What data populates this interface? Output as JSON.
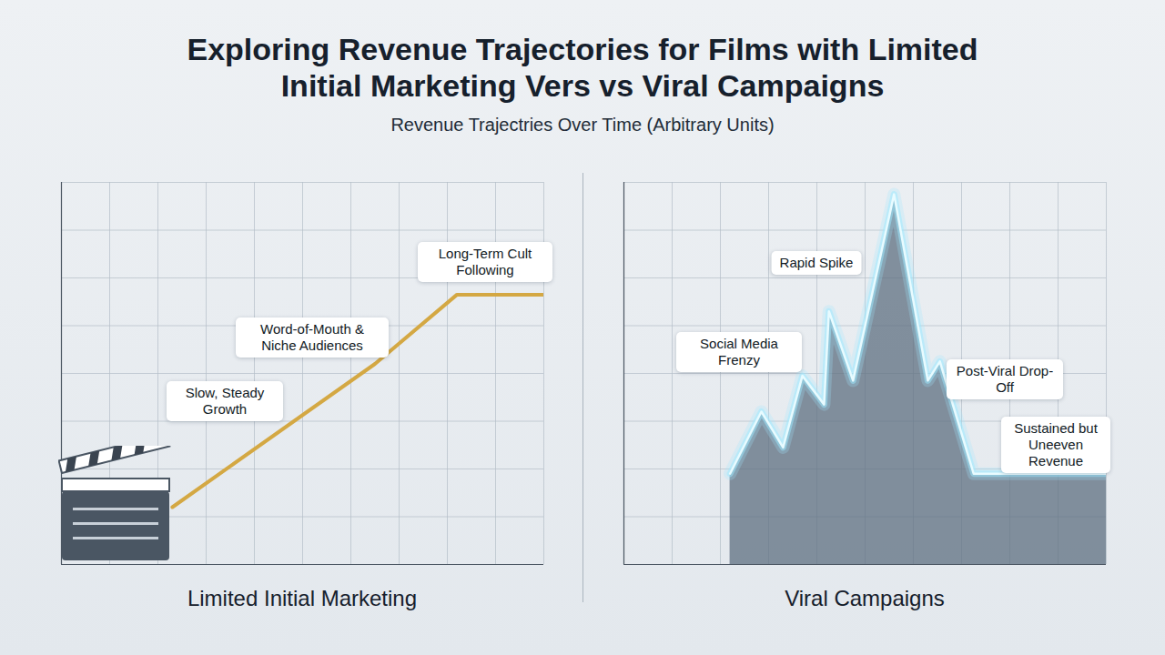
{
  "title": "Exploring Revenue Trajectories for Films with Limited Initial Marketing Vers vs Viral Campaigns",
  "subtitle": "Revenue Trajectries Over Time (Arbitrary Units)",
  "chart_data": [
    {
      "type": "line",
      "title": "Limited Initial Marketing",
      "x": [
        2.3,
        6.5,
        8.2,
        10
      ],
      "values": [
        1.2,
        4.2,
        5.65,
        5.65
      ],
      "color": "#d4a843",
      "xlim": [
        0,
        10
      ],
      "ylim": [
        0,
        8
      ],
      "xticks": [
        0,
        1,
        2,
        3,
        4,
        5,
        6,
        7,
        8,
        9,
        10
      ],
      "yticks": [
        0,
        1,
        2,
        3,
        4,
        5,
        6,
        7,
        8
      ],
      "grid": true,
      "tick_labels": false,
      "annotations": [
        "Slow, Steady Growth",
        "Word-of-Mouth & Niche Audiences",
        "Long-Term Cult Following"
      ]
    },
    {
      "type": "area",
      "title": "Viral Campaigns",
      "x": [
        2.2,
        2.85,
        3.3,
        3.7,
        4.15,
        4.25,
        4.75,
        5.6,
        6.3,
        6.55,
        7.25,
        10
      ],
      "values": [
        1.9,
        3.2,
        2.45,
        3.95,
        3.35,
        5.3,
        3.85,
        7.75,
        3.85,
        4.25,
        1.9,
        1.9
      ],
      "color": "#9ee9ff",
      "xlim": [
        0,
        10
      ],
      "ylim": [
        0,
        8
      ],
      "xticks": [
        0,
        1,
        2,
        3,
        4,
        5,
        6,
        7,
        8,
        9,
        10
      ],
      "yticks": [
        0,
        1,
        2,
        3,
        4,
        5,
        6,
        7,
        8
      ],
      "grid": true,
      "tick_labels": false,
      "annotations": [
        "Rapid Spike",
        "Social Media Frenzy",
        "Post-Viral Drop-Off",
        "Sustained but Uneeven Revenue"
      ]
    }
  ]
}
